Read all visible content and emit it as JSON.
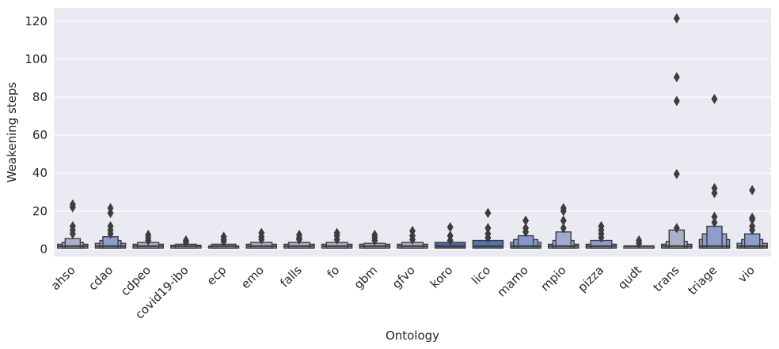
{
  "chart_data": {
    "type": "boxen",
    "xlabel": "Ontology",
    "ylabel": "Weakening steps",
    "ylim": [
      -4,
      127
    ],
    "yticks": [
      0,
      20,
      40,
      60,
      80,
      100,
      120
    ],
    "grid": true,
    "background": "#eaeaf2",
    "categories": [
      "ahso",
      "cdao",
      "cdpeo",
      "covid19-ibo",
      "ecp",
      "emo",
      "falls",
      "fo",
      "gbm",
      "gfvo",
      "koro",
      "lico",
      "mamo",
      "mpio",
      "pizza",
      "qudt",
      "trans",
      "triage",
      "vio"
    ],
    "groups": [
      {
        "name": "ahso",
        "boxes": [
          [
            1,
            2.5
          ],
          [
            0.7,
            3.5
          ],
          [
            0.5,
            5.5
          ]
        ],
        "outliers": [
          8,
          10,
          12,
          22,
          23.5
        ],
        "color": "#aab0c9"
      },
      {
        "name": "cdao",
        "boxes": [
          [
            1,
            3
          ],
          [
            0.7,
            4.5
          ],
          [
            0.5,
            6.5
          ]
        ],
        "outliers": [
          8,
          10,
          12,
          19,
          21.5
        ],
        "color": "#8f9dce"
      },
      {
        "name": "cdpeo",
        "boxes": [
          [
            1,
            2.5
          ],
          [
            0.7,
            3.5
          ]
        ],
        "outliers": [
          4.5,
          6,
          7.5
        ],
        "color": "#aab0c9"
      },
      {
        "name": "covid19-ibo",
        "boxes": [
          [
            1,
            2
          ],
          [
            0.7,
            2.5
          ]
        ],
        "outliers": [
          3.5,
          4.5
        ],
        "color": "#aab0c9"
      },
      {
        "name": "ecp",
        "boxes": [
          [
            1,
            1.5
          ],
          [
            0.8,
            2.5
          ]
        ],
        "outliers": [
          4,
          5,
          6.5
        ],
        "color": "#aab0c9"
      },
      {
        "name": "emo",
        "boxes": [
          [
            1,
            2.5
          ],
          [
            0.7,
            3.5
          ]
        ],
        "outliers": [
          5,
          6.5,
          8.5
        ],
        "color": "#aab0c9"
      },
      {
        "name": "falls",
        "boxes": [
          [
            1,
            2.5
          ],
          [
            0.7,
            3.5
          ]
        ],
        "outliers": [
          5,
          6,
          7.5
        ],
        "color": "#aab0c9"
      },
      {
        "name": "fo",
        "boxes": [
          [
            1,
            2.5
          ],
          [
            0.7,
            3.5
          ]
        ],
        "outliers": [
          5,
          7,
          8.5
        ],
        "color": "#aab0c9"
      },
      {
        "name": "gbm",
        "boxes": [
          [
            1,
            2.5
          ],
          [
            0.7,
            3
          ]
        ],
        "outliers": [
          4.5,
          6,
          7.5
        ],
        "color": "#aab0c9"
      },
      {
        "name": "gfvo",
        "boxes": [
          [
            1,
            2.5
          ],
          [
            0.7,
            3.5
          ]
        ],
        "outliers": [
          5,
          7,
          9.5
        ],
        "color": "#aab0c9"
      },
      {
        "name": "koro",
        "boxes": [
          [
            1,
            3.5
          ]
        ],
        "outliers": [
          4.5,
          7,
          11.5
        ],
        "color": "#4e69a6"
      },
      {
        "name": "lico",
        "boxes": [
          [
            1,
            4.5
          ]
        ],
        "outliers": [
          6,
          8,
          11,
          19
        ],
        "color": "#5574b0"
      },
      {
        "name": "mamo",
        "boxes": [
          [
            1,
            3.5
          ],
          [
            0.8,
            5
          ],
          [
            0.5,
            7
          ]
        ],
        "outliers": [
          9,
          11,
          15
        ],
        "color": "#8598ca"
      },
      {
        "name": "mpio",
        "boxes": [
          [
            1,
            2.5
          ],
          [
            0.7,
            4.5
          ],
          [
            0.5,
            9
          ]
        ],
        "outliers": [
          11,
          15,
          20,
          21.5
        ],
        "color": "#9fabcf"
      },
      {
        "name": "pizza",
        "boxes": [
          [
            1,
            2.5
          ],
          [
            0.7,
            4.5
          ]
        ],
        "outliers": [
          6,
          8,
          10,
          12
        ],
        "color": "#8f9dce"
      },
      {
        "name": "qudt",
        "boxes": [
          [
            1,
            1.5
          ]
        ],
        "outliers": [
          3,
          4.5
        ],
        "color": "#aab0c9"
      },
      {
        "name": "trans",
        "boxes": [
          [
            1,
            2.5
          ],
          [
            0.7,
            4
          ],
          [
            0.5,
            10
          ]
        ],
        "outliers": [
          11,
          39.5,
          78,
          90.5,
          121.5
        ],
        "color": "#aab0c9"
      },
      {
        "name": "triage",
        "boxes": [
          [
            1,
            5
          ],
          [
            0.8,
            8
          ],
          [
            0.5,
            12
          ]
        ],
        "outliers": [
          14,
          17,
          29.5,
          32,
          79
        ],
        "color": "#8f9dce"
      },
      {
        "name": "vio",
        "boxes": [
          [
            1,
            3
          ],
          [
            0.7,
            5
          ],
          [
            0.5,
            8
          ]
        ],
        "outliers": [
          10,
          12,
          15.5,
          16.5,
          31
        ],
        "color": "#8f9dce"
      }
    ]
  }
}
